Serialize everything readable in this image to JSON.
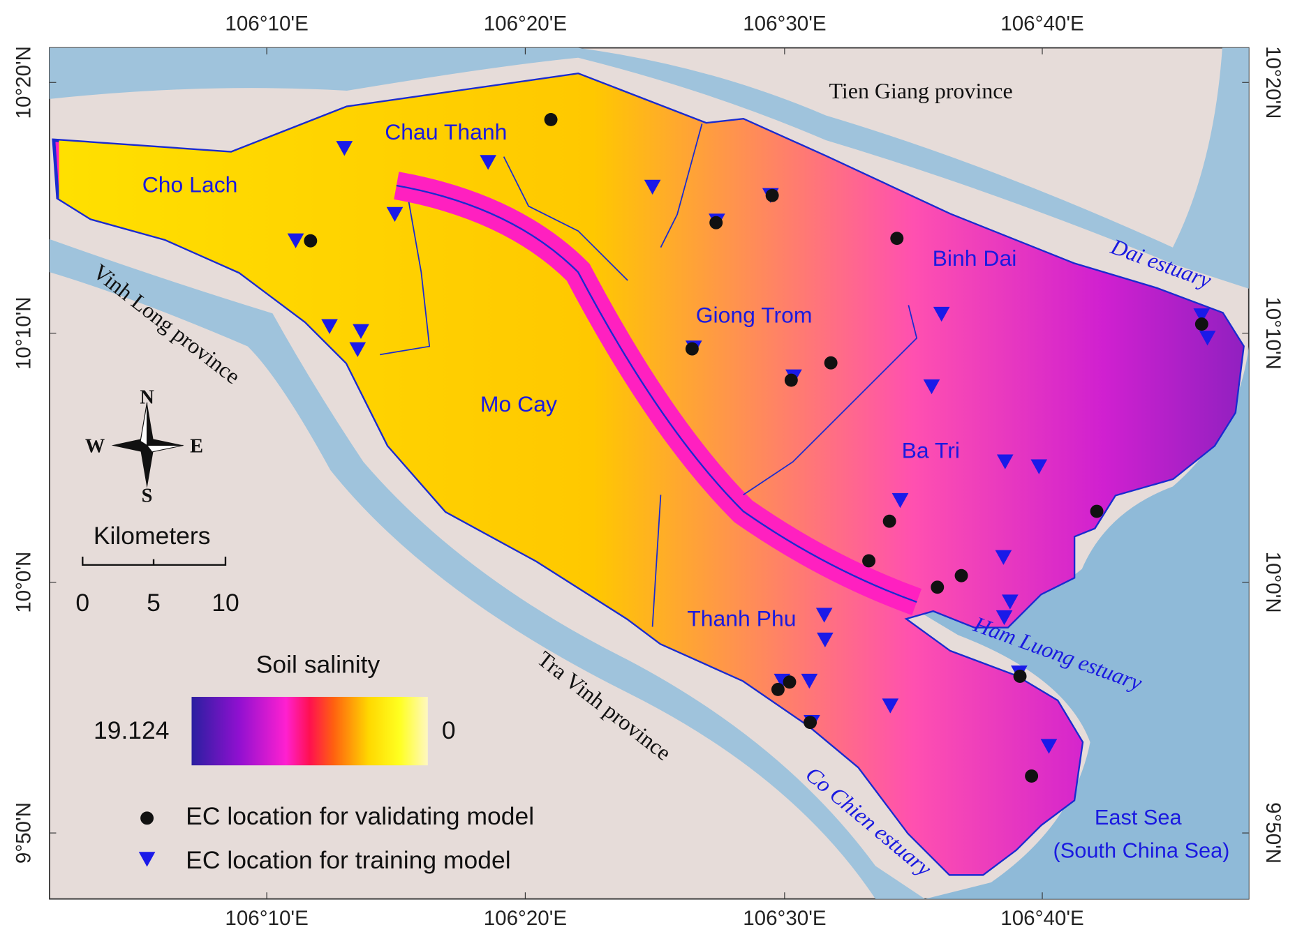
{
  "map": {
    "longitude_labels": [
      "106°10'E",
      "106°20'E",
      "106°30'E",
      "106°40'E"
    ],
    "latitude_labels": [
      "10°20'N",
      "10°10'N",
      "10°0'N",
      "9°50'N"
    ],
    "place_labels": [
      "Tien Giang province",
      "Chau Thanh",
      "Cho Lach",
      "Binh Dai",
      "Giong Trom",
      "Mo Cay",
      "Ba Tri",
      "Thanh Phu",
      "Vinh Long province",
      "Tra Vinh province",
      "Dai estuary",
      "Ham Luong estuary",
      "Co Chien estuary",
      "East Sea",
      "(South China Sea)"
    ],
    "compass": [
      "N",
      "S",
      "E",
      "W"
    ],
    "scale_bar": {
      "title": "Kilometers",
      "ticks": [
        "0",
        "5",
        "10"
      ]
    },
    "legend": {
      "title": "Soil salinity",
      "max": "19.124",
      "min": "0",
      "items": [
        "EC location for validating model",
        "EC location for training model"
      ]
    }
  }
}
